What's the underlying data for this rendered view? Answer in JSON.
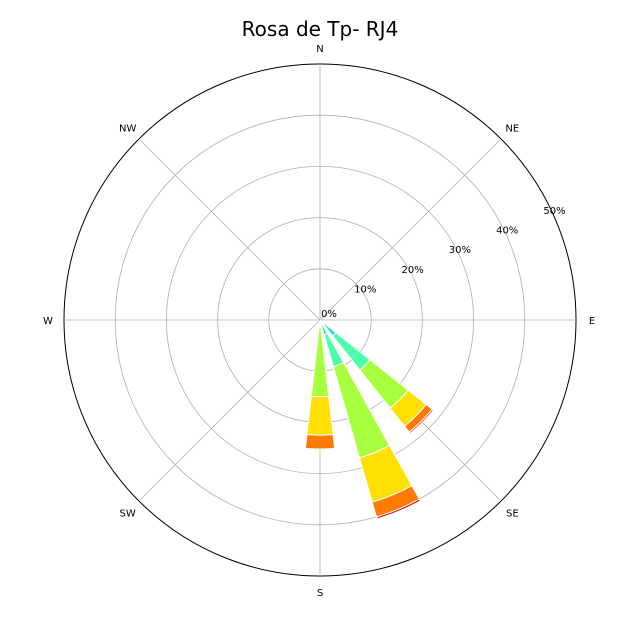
{
  "chart_data": {
    "type": "windrose",
    "title": "Rosa de Tp- RJ4",
    "directions": [
      "N",
      "NE",
      "E",
      "SE",
      "S",
      "SW",
      "W",
      "NW"
    ],
    "radial_ticks": [
      "0%",
      "10%",
      "20%",
      "30%",
      "40%",
      "50%"
    ],
    "radial_values": [
      0,
      10,
      20,
      30,
      40,
      50
    ],
    "rmax": 50,
    "grid": true,
    "bins": [
      {
        "color": "#00bfff"
      },
      {
        "color": "#2fe0c8"
      },
      {
        "color": "#4dffaa"
      },
      {
        "color": "#a8ff40"
      },
      {
        "color": "#ffe000"
      },
      {
        "color": "#ff7a00"
      },
      {
        "color": "#e60000"
      }
    ],
    "sectors": [
      {
        "direction_deg": 135.0,
        "cumulative": [
          0.5,
          4.0,
          12.5,
          22.0,
          26.5,
          28.0,
          28.3
        ]
      },
      {
        "direction_deg": 157.5,
        "cumulative": [
          0.5,
          3.0,
          9.5,
          28.0,
          37.0,
          40.0,
          40.4
        ]
      },
      {
        "direction_deg": 180.0,
        "cumulative": [
          0.3,
          1.0,
          1.5,
          15.0,
          22.5,
          25.2,
          25.2
        ]
      }
    ]
  }
}
